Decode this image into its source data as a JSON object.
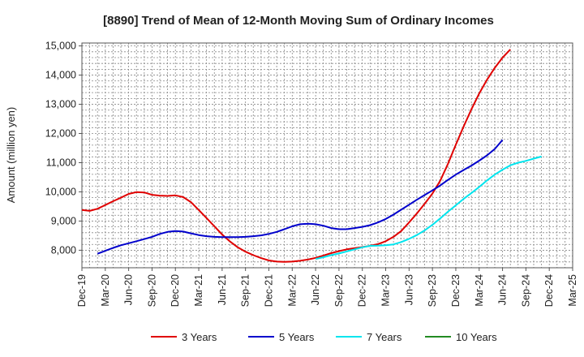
{
  "chart_data": {
    "type": "line",
    "title": "[8890]  Trend of Mean of 12-Month Moving Sum of Ordinary Incomes",
    "xlabel": "",
    "ylabel": "Amount (million yen)",
    "ylim": [
      7400,
      15100
    ],
    "grid": true,
    "legend_position": "bottom",
    "x_ticks": [
      "Dec-19",
      "Mar-20",
      "Jun-20",
      "Sep-20",
      "Dec-20",
      "Mar-21",
      "Jun-21",
      "Sep-21",
      "Dec-21",
      "Mar-22",
      "Jun-22",
      "Sep-22",
      "Dec-22",
      "Mar-23",
      "Jun-23",
      "Sep-23",
      "Dec-23",
      "Mar-24",
      "Jun-24",
      "Sep-24",
      "Dec-24",
      "Mar-25"
    ],
    "y_ticks": [
      {
        "value": 8000,
        "label": "8,000"
      },
      {
        "value": 9000,
        "label": "9,000"
      },
      {
        "value": 10000,
        "label": "10,000"
      },
      {
        "value": 11000,
        "label": "11,000"
      },
      {
        "value": 12000,
        "label": "12,000"
      },
      {
        "value": 13000,
        "label": "13,000"
      },
      {
        "value": 14000,
        "label": "14,000"
      },
      {
        "value": 15000,
        "label": "15,000"
      }
    ],
    "series": [
      {
        "name": "3 Years",
        "color": "#e00000",
        "start_index": 0,
        "values": [
          9380,
          9350,
          9420,
          9550,
          9680,
          9800,
          9930,
          9990,
          9980,
          9900,
          9870,
          9860,
          9880,
          9820,
          9650,
          9380,
          9100,
          8820,
          8540,
          8300,
          8100,
          7950,
          7830,
          7730,
          7650,
          7610,
          7600,
          7610,
          7640,
          7680,
          7740,
          7820,
          7900,
          7970,
          8030,
          8070,
          8110,
          8150,
          8210,
          8310,
          8460,
          8660,
          8950,
          9260,
          9590,
          9940,
          10380,
          10960,
          11620,
          12240,
          12830,
          13370,
          13840,
          14250,
          14600,
          14880
        ]
      },
      {
        "name": "5 Years",
        "color": "#0000cc",
        "start_index": 2,
        "values": [
          7880,
          7980,
          8080,
          8170,
          8240,
          8310,
          8380,
          8460,
          8560,
          8630,
          8660,
          8640,
          8580,
          8520,
          8480,
          8460,
          8450,
          8450,
          8450,
          8460,
          8480,
          8510,
          8560,
          8630,
          8720,
          8820,
          8890,
          8910,
          8890,
          8840,
          8760,
          8720,
          8720,
          8760,
          8800,
          8860,
          8950,
          9070,
          9220,
          9390,
          9560,
          9730,
          9890,
          10050,
          10220,
          10410,
          10590,
          10750,
          10900,
          11070,
          11250,
          11470,
          11780
        ]
      },
      {
        "name": "7 Years",
        "color": "#00e5ee",
        "start_index": 30,
        "values": [
          7700,
          7760,
          7830,
          7890,
          7960,
          8030,
          8100,
          8150,
          8160,
          8170,
          8200,
          8280,
          8390,
          8520,
          8680,
          8870,
          9090,
          9320,
          9540,
          9760,
          9960,
          10170,
          10390,
          10590,
          10760,
          10910,
          11000,
          11060,
          11140,
          11210
        ]
      },
      {
        "name": "10 Years",
        "color": "#228b22",
        "start_index": 0,
        "values": []
      }
    ]
  }
}
